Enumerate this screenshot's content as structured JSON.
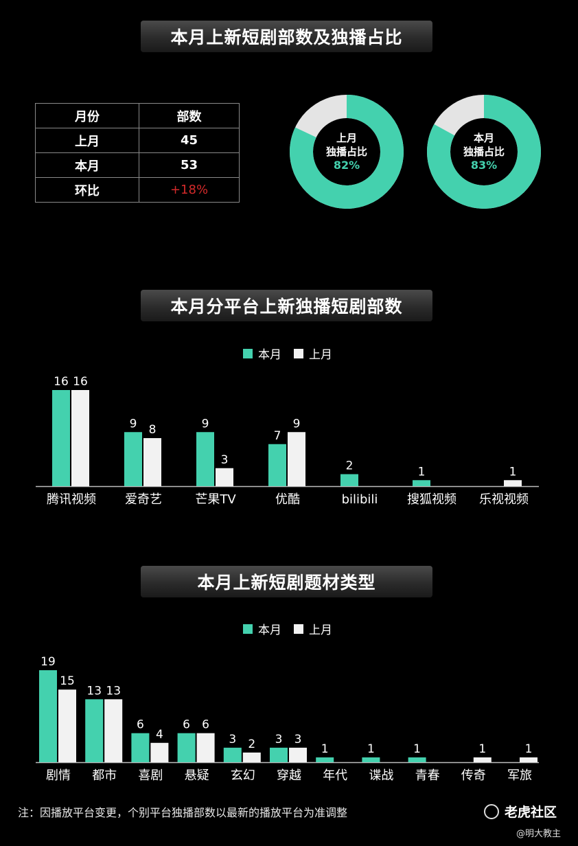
{
  "colors": {
    "this_month": "#44d1ae",
    "last_month": "#f2f2f2",
    "positive": "#d42a2a",
    "donut_rest": "#e4e4e4"
  },
  "section1": {
    "title": "本月上新短剧部数及独播占比",
    "table": {
      "header": [
        "月份",
        "部数"
      ],
      "rows": [
        [
          "上月",
          "45"
        ],
        [
          "本月",
          "53"
        ],
        [
          "环比",
          "+18%"
        ]
      ]
    },
    "donuts": [
      {
        "line1": "上月",
        "line2": "独播占比",
        "pct_label": "82%",
        "value": 0.82
      },
      {
        "line1": "本月",
        "line2": "独播占比",
        "pct_label": "83%",
        "value": 0.83
      }
    ]
  },
  "section2": {
    "title": "本月分平台上新独播短剧部数"
  },
  "section3": {
    "title": "本月上新短剧题材类型"
  },
  "legend": {
    "this_month": "本月",
    "last_month": "上月"
  },
  "chart_data": [
    {
      "type": "bar",
      "title": "本月分平台上新独播短剧部数",
      "categories": [
        "腾讯视频",
        "爱奇艺",
        "芒果TV",
        "优酷",
        "bilibili",
        "搜狐视频",
        "乐视视频"
      ],
      "series": [
        {
          "name": "本月",
          "values": [
            16,
            9,
            9,
            7,
            2,
            1,
            null
          ],
          "color": "#44d1ae"
        },
        {
          "name": "上月",
          "values": [
            16,
            8,
            3,
            9,
            null,
            null,
            1
          ],
          "color": "#f2f2f2"
        }
      ],
      "ylim": [
        0,
        16
      ],
      "grid": false,
      "legend_position": "top-center"
    },
    {
      "type": "bar",
      "title": "本月上新短剧题材类型",
      "categories": [
        "剧情",
        "都市",
        "喜剧",
        "悬疑",
        "玄幻",
        "穿越",
        "年代",
        "谍战",
        "青春",
        "传奇",
        "军旅"
      ],
      "series": [
        {
          "name": "本月",
          "values": [
            19,
            13,
            6,
            6,
            3,
            3,
            1,
            1,
            1,
            null,
            null
          ],
          "color": "#44d1ae"
        },
        {
          "name": "上月",
          "values": [
            15,
            13,
            4,
            6,
            2,
            3,
            null,
            null,
            null,
            1,
            1
          ],
          "color": "#f2f2f2"
        }
      ],
      "ylim": [
        0,
        19
      ],
      "grid": false,
      "legend_position": "top-center"
    }
  ],
  "footer": {
    "note": "注：因播放平台变更，个别平台独播部数以最新的播放平台为准调整",
    "logo_text": "老虎社区",
    "username": "@明大教主"
  }
}
